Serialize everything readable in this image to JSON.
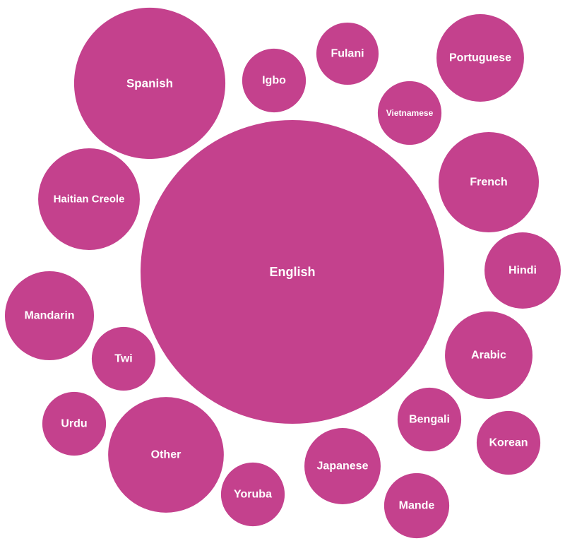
{
  "chart_data": {
    "type": "bubble",
    "title": "",
    "color": "#C4418D",
    "size_note_units": "relative bubble area (English = 100), estimated",
    "bubbles": [
      {
        "label": "English",
        "relative_size": 100
      },
      {
        "label": "Spanish",
        "relative_size": 24.8
      },
      {
        "label": "Igbo",
        "relative_size": 4.4
      },
      {
        "label": "Fulani",
        "relative_size": 4.2
      },
      {
        "label": "Portuguese",
        "relative_size": 8.3
      },
      {
        "label": "Vietnamese",
        "relative_size": 4.4
      },
      {
        "label": "French",
        "relative_size": 10.9
      },
      {
        "label": "Hindi",
        "relative_size": 6.3
      },
      {
        "label": "Arabic",
        "relative_size": 8.3
      },
      {
        "label": "Bengali",
        "relative_size": 4.4
      },
      {
        "label": "Korean",
        "relative_size": 4.4
      },
      {
        "label": "Mande",
        "relative_size": 4.6
      },
      {
        "label": "Japanese",
        "relative_size": 6.3
      },
      {
        "label": "Yoruba",
        "relative_size": 4.4
      },
      {
        "label": "Other",
        "relative_size": 14.5
      },
      {
        "label": "Urdu",
        "relative_size": 4.4
      },
      {
        "label": "Twi",
        "relative_size": 4.4
      },
      {
        "label": "Mandarin",
        "relative_size": 8.6
      },
      {
        "label": "Haitian Creole",
        "relative_size": 11.2
      }
    ]
  }
}
